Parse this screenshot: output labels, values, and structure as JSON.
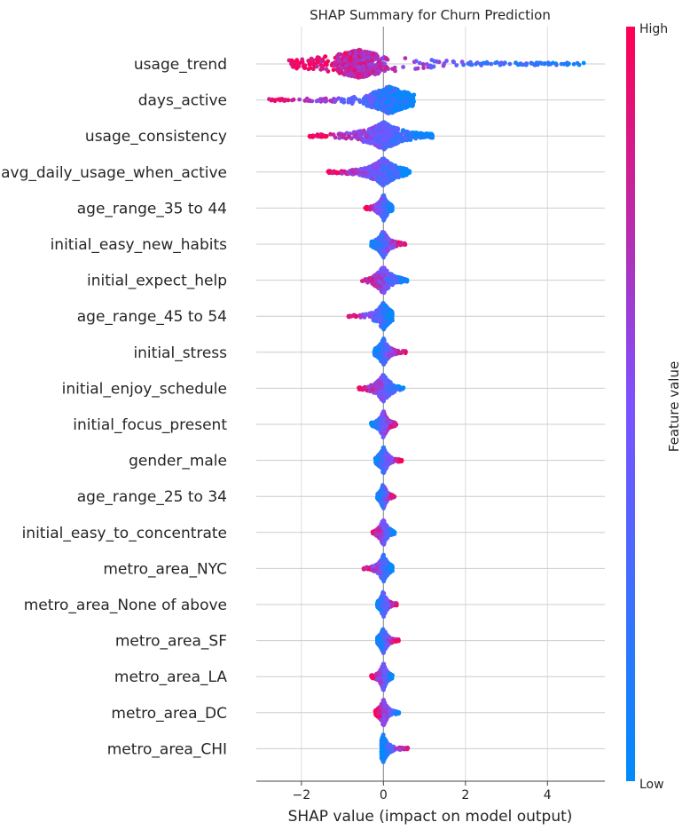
{
  "chart_data": {
    "type": "scatter",
    "subtype": "shap-beeswarm",
    "title": "SHAP Summary for Churn Prediction",
    "xlabel": "SHAP value (impact on model output)",
    "xlim": [
      -3.1,
      5.4
    ],
    "xticks": [
      -2,
      0,
      2,
      4
    ],
    "xtick_labels": [
      "−2",
      "0",
      "2",
      "4"
    ],
    "grid": "horizontal lines per feature, zero line vertical",
    "colorbar": {
      "label": "Feature value",
      "high_label": "High",
      "low_label": "Low",
      "colors": [
        "#008bfb",
        "#7c52ff",
        "#ff0052"
      ]
    },
    "features": [
      {
        "name": "usage_trend",
        "min": -2.3,
        "max": 4.9,
        "low_side": "right",
        "neg_len": 2.3,
        "pos_len": 4.9,
        "density_center": -0.6,
        "spread": 0.28
      },
      {
        "name": "days_active",
        "min": -2.8,
        "max": 0.75,
        "low_side": "right",
        "neg_len": 2.8,
        "pos_len": 0.75,
        "density_center": 0.15,
        "spread": 0.26
      },
      {
        "name": "usage_consistency",
        "min": -1.8,
        "max": 1.2,
        "low_side": "right",
        "neg_len": 1.8,
        "pos_len": 1.2,
        "density_center": 0.0,
        "spread": 0.2
      },
      {
        "name": "avg_daily_usage_when_active",
        "min": -1.35,
        "max": 0.65,
        "low_side": "right",
        "neg_len": 1.35,
        "pos_len": 0.65,
        "density_center": 0.0,
        "spread": 0.2
      },
      {
        "name": "age_range_35 to 44",
        "min": -0.45,
        "max": 0.22,
        "low_side": "right",
        "neg_len": 0.45,
        "pos_len": 0.22,
        "density_center": 0.0,
        "spread": 0.13
      },
      {
        "name": "initial_easy_new_habits",
        "min": -0.3,
        "max": 0.55,
        "low_side": "left",
        "neg_len": 0.3,
        "pos_len": 0.55,
        "density_center": 0.0,
        "spread": 0.12
      },
      {
        "name": "initial_expect_help",
        "min": -0.6,
        "max": 0.6,
        "low_side": "right",
        "neg_len": 0.6,
        "pos_len": 0.6,
        "density_center": 0.0,
        "spread": 0.12
      },
      {
        "name": "age_range_45 to 54",
        "min": -0.85,
        "max": 0.22,
        "low_side": "right",
        "neg_len": 0.85,
        "pos_len": 0.22,
        "density_center": 0.0,
        "spread": 0.1
      },
      {
        "name": "initial_stress",
        "min": -0.22,
        "max": 0.55,
        "low_side": "left",
        "neg_len": 0.22,
        "pos_len": 0.55,
        "density_center": 0.0,
        "spread": 0.12
      },
      {
        "name": "initial_enjoy_schedule",
        "min": -0.6,
        "max": 0.5,
        "low_side": "right",
        "neg_len": 0.6,
        "pos_len": 0.5,
        "density_center": 0.0,
        "spread": 0.12
      },
      {
        "name": "initial_focus_present",
        "min": -0.3,
        "max": 0.32,
        "low_side": "left",
        "neg_len": 0.3,
        "pos_len": 0.32,
        "density_center": 0.0,
        "spread": 0.11
      },
      {
        "name": "gender_male",
        "min": -0.2,
        "max": 0.45,
        "low_side": "left",
        "neg_len": 0.2,
        "pos_len": 0.45,
        "density_center": 0.0,
        "spread": 0.1
      },
      {
        "name": "age_range_25 to 34",
        "min": -0.15,
        "max": 0.28,
        "low_side": "left",
        "neg_len": 0.15,
        "pos_len": 0.28,
        "density_center": 0.0,
        "spread": 0.1
      },
      {
        "name": "initial_easy_to_concentrate",
        "min": -0.3,
        "max": 0.28,
        "low_side": "right",
        "neg_len": 0.3,
        "pos_len": 0.28,
        "density_center": 0.0,
        "spread": 0.1
      },
      {
        "name": "metro_area_NYC",
        "min": -0.48,
        "max": 0.22,
        "low_side": "right",
        "neg_len": 0.48,
        "pos_len": 0.22,
        "density_center": 0.0,
        "spread": 0.1
      },
      {
        "name": "metro_area_None of above",
        "min": -0.15,
        "max": 0.33,
        "low_side": "left",
        "neg_len": 0.15,
        "pos_len": 0.33,
        "density_center": 0.0,
        "spread": 0.1
      },
      {
        "name": "metro_area_SF",
        "min": -0.15,
        "max": 0.38,
        "low_side": "left",
        "neg_len": 0.15,
        "pos_len": 0.38,
        "density_center": 0.0,
        "spread": 0.1
      },
      {
        "name": "metro_area_LA",
        "min": -0.3,
        "max": 0.22,
        "low_side": "right",
        "neg_len": 0.3,
        "pos_len": 0.22,
        "density_center": 0.0,
        "spread": 0.1
      },
      {
        "name": "metro_area_DC",
        "min": -0.2,
        "max": 0.38,
        "low_side": "right",
        "neg_len": 0.2,
        "pos_len": 0.38,
        "density_center": 0.0,
        "spread": 0.1
      },
      {
        "name": "metro_area_CHI",
        "min": -0.05,
        "max": 0.6,
        "low_side": "left",
        "neg_len": 0.05,
        "pos_len": 0.6,
        "density_center": 0.0,
        "spread": 0.1
      }
    ]
  }
}
